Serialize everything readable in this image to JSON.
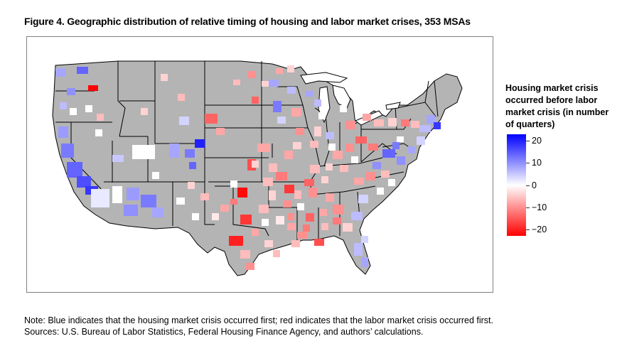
{
  "figure": {
    "title": "Figure 4. Geographic distribution of relative timing of housing and labor market crises, 353 MSAs"
  },
  "legend": {
    "title": "Housing market crisis occurred before labor market crisis (in number of quarters)",
    "scale": {
      "min": -23,
      "max": 23,
      "colors": {
        "max": "#0000ff",
        "mid": "#ffffff",
        "min": "#ff0000"
      }
    },
    "ticks": [
      {
        "value": 20,
        "label": "20"
      },
      {
        "value": 10,
        "label": "10"
      },
      {
        "value": 0,
        "label": "0"
      },
      {
        "value": -10,
        "label": "−10"
      },
      {
        "value": -20,
        "label": "−20"
      }
    ]
  },
  "map": {
    "base_color": "#b4b4b4",
    "border_color": "#000000"
  },
  "notes": {
    "note": "Note:  Blue indicates that the housing market crisis occurred first; red indicates that the labor market crisis occurred first.",
    "sources": "Sources:  U.S. Bureau of Labor Statistics, Federal Housing Finance Agency, and authors’ calculations."
  }
}
